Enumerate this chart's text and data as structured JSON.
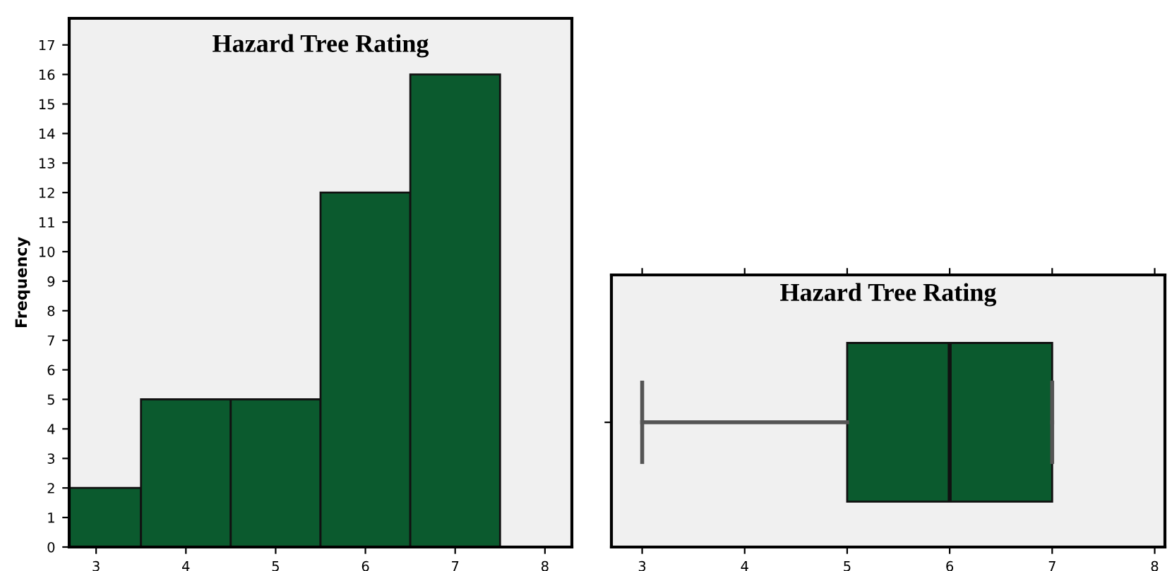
{
  "chart_data": [
    {
      "type": "histogram",
      "title": "Hazard Tree Rating",
      "ylabel": "Frequency",
      "color": "#0b5a2e",
      "bins": [
        2.5,
        3.5,
        4.5,
        5.5,
        6.5,
        7.5
      ],
      "values": [
        2,
        5,
        5,
        12,
        16
      ],
      "xlim": [
        2.7,
        8.3
      ],
      "xticks": [
        3,
        4,
        5,
        6,
        7,
        8
      ],
      "ylim": [
        0,
        17.9
      ],
      "yticks": [
        0,
        1,
        2,
        3,
        4,
        5,
        6,
        7,
        8,
        9,
        10,
        11,
        12,
        13,
        14,
        15,
        16,
        17
      ],
      "grid": false
    },
    {
      "type": "box",
      "title": "Hazard Tree Rating",
      "orientation": "horizontal",
      "color": "#0b5a2e",
      "categories": [
        null
      ],
      "boxes": [
        {
          "low": 3,
          "q1": 5,
          "median": 6,
          "q3": 7,
          "high": 7
        }
      ],
      "xlim": [
        2.7,
        8.1
      ],
      "xticks": [
        3,
        4,
        5,
        6,
        7,
        8
      ],
      "tick_labels": "x",
      "grid": false
    }
  ]
}
